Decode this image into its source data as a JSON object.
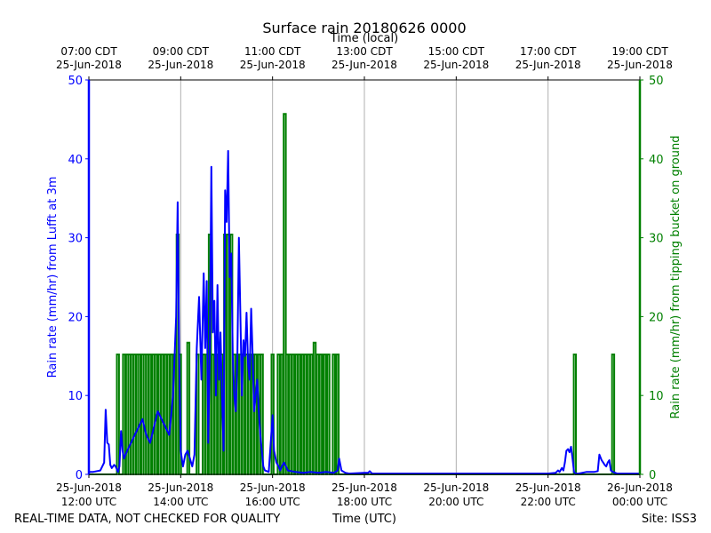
{
  "chart_data": {
    "type": "line",
    "title": "Surface rain 20180626 0000",
    "top_axis_label": "Time (local)",
    "xlabel": "Time (UTC)",
    "ylabel_left": "Rain rate (mm/hr) from Lufft at 3m",
    "ylabel_right": "Rain rate (mm/hr) from tipping bucket on ground",
    "footer_left": "REAL-TIME DATA, NOT CHECKED FOR QUALITY",
    "footer_right": "Site: ISS3",
    "xlim": [
      "2018-06-25 12:00",
      "2018-06-26 00:00"
    ],
    "ylim_left": [
      0,
      50
    ],
    "ylim_right": [
      0,
      50
    ],
    "grid": "vertical",
    "bottom_ticks": [
      {
        "line1": "25-Jun-2018",
        "line2": "12:00 UTC"
      },
      {
        "line1": "25-Jun-2018",
        "line2": "14:00 UTC"
      },
      {
        "line1": "25-Jun-2018",
        "line2": "16:00 UTC"
      },
      {
        "line1": "25-Jun-2018",
        "line2": "18:00 UTC"
      },
      {
        "line1": "25-Jun-2018",
        "line2": "20:00 UTC"
      },
      {
        "line1": "25-Jun-2018",
        "line2": "22:00 UTC"
      },
      {
        "line1": "26-Jun-2018",
        "line2": "00:00 UTC"
      }
    ],
    "top_ticks": [
      {
        "line1": "07:00 CDT",
        "line2": "25-Jun-2018"
      },
      {
        "line1": "09:00 CDT",
        "line2": "25-Jun-2018"
      },
      {
        "line1": "11:00 CDT",
        "line2": "25-Jun-2018"
      },
      {
        "line1": "13:00 CDT",
        "line2": "25-Jun-2018"
      },
      {
        "line1": "15:00 CDT",
        "line2": "25-Jun-2018"
      },
      {
        "line1": "17:00 CDT",
        "line2": "25-Jun-2018"
      },
      {
        "line1": "19:00 CDT",
        "line2": "25-Jun-2018"
      }
    ],
    "yticks_left": [
      "0",
      "10",
      "20",
      "30",
      "40",
      "50"
    ],
    "yticks_right": [
      "0",
      "10",
      "20",
      "30",
      "40",
      "50"
    ],
    "colors": {
      "lufft": "#0000ff",
      "bucket": "#008000",
      "axis": "#000000",
      "grid": "#b0b0b0"
    },
    "series": [
      {
        "key": "lufft",
        "x": [
          "12:00",
          "12:05",
          "12:15",
          "12:20",
          "12:22",
          "12:24",
          "12:26",
          "12:28",
          "12:30",
          "12:33",
          "12:35",
          "12:38",
          "12:40",
          "12:42",
          "12:44",
          "12:46",
          "12:48",
          "12:50",
          "12:55",
          "13:00",
          "13:05",
          "13:10",
          "13:15",
          "13:20",
          "13:25",
          "13:30",
          "13:35",
          "13:40",
          "13:45",
          "13:50",
          "13:54",
          "13:56",
          "13:58",
          "14:00",
          "14:03",
          "14:06",
          "14:09",
          "14:12",
          "14:15",
          "14:18",
          "14:21",
          "14:24",
          "14:27",
          "14:30",
          "14:32",
          "14:34",
          "14:36",
          "14:38",
          "14:40",
          "14:42",
          "14:44",
          "14:46",
          "14:48",
          "14:50",
          "14:52",
          "14:54",
          "14:56",
          "14:58",
          "15:00",
          "15:02",
          "15:04",
          "15:06",
          "15:08",
          "15:10",
          "15:12",
          "15:14",
          "15:16",
          "15:18",
          "15:20",
          "15:22",
          "15:24",
          "15:26",
          "15:28",
          "15:30",
          "15:32",
          "15:34",
          "15:36",
          "15:38",
          "15:40",
          "15:42",
          "15:44",
          "15:46",
          "15:48",
          "15:50",
          "15:55",
          "16:00",
          "16:02",
          "16:05",
          "16:08",
          "16:10",
          "16:12",
          "16:15",
          "16:20",
          "16:30",
          "16:40",
          "16:50",
          "17:00",
          "17:10",
          "17:20",
          "17:25",
          "17:27",
          "17:30",
          "17:35",
          "17:40",
          "18:00",
          "18:05",
          "18:07",
          "18:10",
          "19:00",
          "20:00",
          "21:00",
          "22:00",
          "22:10",
          "22:13",
          "22:15",
          "22:18",
          "22:20",
          "22:22",
          "22:24",
          "22:26",
          "22:28",
          "22:30",
          "22:32",
          "22:34",
          "22:36",
          "22:40",
          "22:45",
          "22:50",
          "22:55",
          "23:00",
          "23:05",
          "23:07",
          "23:10",
          "23:12",
          "23:14",
          "23:16",
          "23:18",
          "23:20",
          "23:22",
          "23:25",
          "23:30",
          "23:45",
          "24:00"
        ],
        "y": [
          0.3,
          0.3,
          0.5,
          1.5,
          8.2,
          4.0,
          3.8,
          1.2,
          0.8,
          1.2,
          1.0,
          0.3,
          1.0,
          5.5,
          3.0,
          2.0,
          2.5,
          3.0,
          4.0,
          5.0,
          6.0,
          7.0,
          5.0,
          4.0,
          6.0,
          8.0,
          7.0,
          6.0,
          5.0,
          10.0,
          20.0,
          34.5,
          15.0,
          3.0,
          1.0,
          2.5,
          3.0,
          2.0,
          1.0,
          2.5,
          16.0,
          22.5,
          12.0,
          25.5,
          16.0,
          24.5,
          4.0,
          16.0,
          39.0,
          18.0,
          22.0,
          10.0,
          24.0,
          12.0,
          18.0,
          10.0,
          3.0,
          36.0,
          32.0,
          41.0,
          25.0,
          28.0,
          15.0,
          10.0,
          8.0,
          15.0,
          30.0,
          20.0,
          10.0,
          17.0,
          15.0,
          20.5,
          14.0,
          12.0,
          21.0,
          15.0,
          8.0,
          10.0,
          12.0,
          8.0,
          5.0,
          3.0,
          1.0,
          0.5,
          0.3,
          7.5,
          3.0,
          1.5,
          1.0,
          0.5,
          1.0,
          1.5,
          0.5,
          0.3,
          0.2,
          0.3,
          0.2,
          0.3,
          0.2,
          0.5,
          2.0,
          0.5,
          0.2,
          0.1,
          0.2,
          0.2,
          0.4,
          0.1,
          0.1,
          0.1,
          0.1,
          0.1,
          0.2,
          0.5,
          0.3,
          0.8,
          0.5,
          1.5,
          3.0,
          3.2,
          2.8,
          3.5,
          2.0,
          0.3,
          0.1,
          0.1,
          0.2,
          0.3,
          0.3,
          0.3,
          0.4,
          2.5,
          1.8,
          1.5,
          1.2,
          1.0,
          1.5,
          1.8,
          0.5,
          0.3,
          0.1,
          0.1,
          0.1
        ]
      },
      {
        "key": "bucket",
        "tips": [
          {
            "x": "12:38",
            "y": 15.2
          },
          {
            "x": "12:46",
            "y": 15.2
          },
          {
            "x": "12:50",
            "y": 15.2
          },
          {
            "x": "12:53",
            "y": 15.2
          },
          {
            "x": "12:56",
            "y": 15.2
          },
          {
            "x": "13:00",
            "y": 15.2
          },
          {
            "x": "13:03",
            "y": 15.2
          },
          {
            "x": "13:06",
            "y": 15.2
          },
          {
            "x": "13:10",
            "y": 15.2
          },
          {
            "x": "13:13",
            "y": 15.2
          },
          {
            "x": "13:16",
            "y": 15.2
          },
          {
            "x": "13:20",
            "y": 15.2
          },
          {
            "x": "13:24",
            "y": 15.2
          },
          {
            "x": "13:28",
            "y": 15.2
          },
          {
            "x": "13:32",
            "y": 15.2
          },
          {
            "x": "13:36",
            "y": 15.2
          },
          {
            "x": "13:40",
            "y": 15.2
          },
          {
            "x": "13:44",
            "y": 15.2
          },
          {
            "x": "13:48",
            "y": 15.2
          },
          {
            "x": "13:52",
            "y": 15.2
          },
          {
            "x": "13:56",
            "y": 30.4
          },
          {
            "x": "13:59",
            "y": 15.2
          },
          {
            "x": "14:10",
            "y": 16.7
          },
          {
            "x": "14:22",
            "y": 15.2
          },
          {
            "x": "14:30",
            "y": 15.2
          },
          {
            "x": "14:34",
            "y": 15.2
          },
          {
            "x": "14:38",
            "y": 30.4
          },
          {
            "x": "14:42",
            "y": 15.2
          },
          {
            "x": "14:46",
            "y": 15.2
          },
          {
            "x": "14:50",
            "y": 15.2
          },
          {
            "x": "14:54",
            "y": 15.2
          },
          {
            "x": "14:58",
            "y": 30.4
          },
          {
            "x": "15:02",
            "y": 30.4
          },
          {
            "x": "15:06",
            "y": 30.4
          },
          {
            "x": "15:10",
            "y": 15.2
          },
          {
            "x": "15:14",
            "y": 15.2
          },
          {
            "x": "15:18",
            "y": 15.2
          },
          {
            "x": "15:22",
            "y": 15.2
          },
          {
            "x": "15:26",
            "y": 15.2
          },
          {
            "x": "15:30",
            "y": 15.2
          },
          {
            "x": "15:34",
            "y": 15.2
          },
          {
            "x": "15:38",
            "y": 15.2
          },
          {
            "x": "15:42",
            "y": 15.2
          },
          {
            "x": "15:46",
            "y": 15.2
          },
          {
            "x": "16:00",
            "y": 15.2
          },
          {
            "x": "16:08",
            "y": 15.2
          },
          {
            "x": "16:12",
            "y": 15.2
          },
          {
            "x": "16:16",
            "y": 45.7
          },
          {
            "x": "16:19",
            "y": 15.2
          },
          {
            "x": "16:23",
            "y": 15.2
          },
          {
            "x": "16:27",
            "y": 15.2
          },
          {
            "x": "16:31",
            "y": 15.2
          },
          {
            "x": "16:35",
            "y": 15.2
          },
          {
            "x": "16:39",
            "y": 15.2
          },
          {
            "x": "16:43",
            "y": 15.2
          },
          {
            "x": "16:47",
            "y": 15.2
          },
          {
            "x": "16:51",
            "y": 15.2
          },
          {
            "x": "16:55",
            "y": 16.7
          },
          {
            "x": "16:59",
            "y": 15.2
          },
          {
            "x": "17:03",
            "y": 15.2
          },
          {
            "x": "17:08",
            "y": 15.2
          },
          {
            "x": "17:13",
            "y": 15.2
          },
          {
            "x": "17:20",
            "y": 15.2
          },
          {
            "x": "17:25",
            "y": 15.2
          },
          {
            "x": "22:35",
            "y": 15.2
          },
          {
            "x": "23:25",
            "y": 15.2
          }
        ]
      }
    ]
  }
}
